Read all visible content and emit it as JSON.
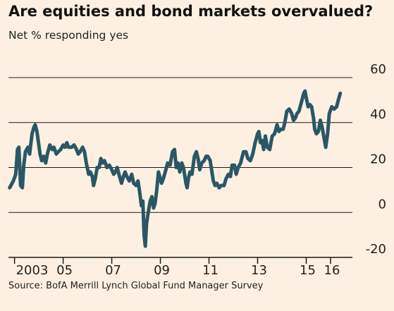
{
  "chart_data": {
    "type": "line",
    "title": "Are equities and bond markets overvalued?",
    "subtitle": "Net % responding yes",
    "source": "Source: BofA Merrill Lynch Global Fund Manager Survey",
    "ylim": [
      -20,
      60
    ],
    "yticks": [
      {
        "value": 60,
        "label": "60"
      },
      {
        "value": 40,
        "label": "40"
      },
      {
        "value": 20,
        "label": "20"
      },
      {
        "value": 0,
        "label": "0"
      },
      {
        "value": -20,
        "label": "-20"
      }
    ],
    "xlim": [
      2002.75,
      2016.9
    ],
    "xticks": [
      {
        "value": 2003.0,
        "label": "2003"
      },
      {
        "value": 2005.0,
        "label": "05"
      },
      {
        "value": 2007.0,
        "label": "07"
      },
      {
        "value": 2009.0,
        "label": "09"
      },
      {
        "value": 2011.0,
        "label": "11"
      },
      {
        "value": 2013.0,
        "label": "13"
      },
      {
        "value": 2015.0,
        "label": "15"
      },
      {
        "value": 2016.0,
        "label": "16"
      }
    ],
    "grid": true,
    "line_color": "#2a5766",
    "series": [
      {
        "values": [
          [
            2002.8,
            11
          ],
          [
            2002.95,
            14
          ],
          [
            2003.05,
            17
          ],
          [
            2003.12,
            28
          ],
          [
            2003.18,
            29
          ],
          [
            2003.25,
            12
          ],
          [
            2003.32,
            11
          ],
          [
            2003.38,
            21
          ],
          [
            2003.45,
            27
          ],
          [
            2003.55,
            29
          ],
          [
            2003.62,
            26
          ],
          [
            2003.72,
            35
          ],
          [
            2003.8,
            38
          ],
          [
            2003.85,
            39
          ],
          [
            2003.92,
            36
          ],
          [
            2004.0,
            30
          ],
          [
            2004.05,
            26
          ],
          [
            2004.12,
            23
          ],
          [
            2004.2,
            25
          ],
          [
            2004.28,
            22
          ],
          [
            2004.35,
            26
          ],
          [
            2004.45,
            30
          ],
          [
            2004.55,
            28
          ],
          [
            2004.62,
            29
          ],
          [
            2004.72,
            26
          ],
          [
            2004.8,
            27
          ],
          [
            2004.9,
            28
          ],
          [
            2005.0,
            30
          ],
          [
            2005.08,
            29
          ],
          [
            2005.15,
            31
          ],
          [
            2005.22,
            29
          ],
          [
            2005.35,
            29
          ],
          [
            2005.45,
            30
          ],
          [
            2005.55,
            28
          ],
          [
            2005.62,
            26
          ],
          [
            2005.7,
            27
          ],
          [
            2005.8,
            29
          ],
          [
            2005.88,
            27
          ],
          [
            2005.95,
            22
          ],
          [
            2006.05,
            17
          ],
          [
            2006.12,
            18
          ],
          [
            2006.2,
            16
          ],
          [
            2006.25,
            12
          ],
          [
            2006.32,
            15
          ],
          [
            2006.4,
            20
          ],
          [
            2006.48,
            20
          ],
          [
            2006.55,
            24
          ],
          [
            2006.62,
            22
          ],
          [
            2006.7,
            23
          ],
          [
            2006.8,
            20
          ],
          [
            2006.9,
            21
          ],
          [
            2007.0,
            19
          ],
          [
            2007.08,
            17
          ],
          [
            2007.15,
            18
          ],
          [
            2007.22,
            20
          ],
          [
            2007.32,
            16
          ],
          [
            2007.4,
            13
          ],
          [
            2007.48,
            16
          ],
          [
            2007.55,
            18
          ],
          [
            2007.62,
            16
          ],
          [
            2007.72,
            14
          ],
          [
            2007.82,
            17
          ],
          [
            2007.9,
            13
          ],
          [
            2008.0,
            12
          ],
          [
            2008.08,
            14
          ],
          [
            2008.15,
            9
          ],
          [
            2008.22,
            3
          ],
          [
            2008.28,
            5
          ],
          [
            2008.33,
            -10
          ],
          [
            2008.38,
            -15
          ],
          [
            2008.43,
            -5
          ],
          [
            2008.5,
            0
          ],
          [
            2008.58,
            5
          ],
          [
            2008.65,
            7
          ],
          [
            2008.72,
            2
          ],
          [
            2008.78,
            4
          ],
          [
            2008.85,
            10
          ],
          [
            2008.92,
            18
          ],
          [
            2009.0,
            15
          ],
          [
            2009.05,
            13
          ],
          [
            2009.12,
            15
          ],
          [
            2009.2,
            18
          ],
          [
            2009.3,
            22
          ],
          [
            2009.4,
            21
          ],
          [
            2009.5,
            27
          ],
          [
            2009.58,
            28
          ],
          [
            2009.65,
            20
          ],
          [
            2009.72,
            22
          ],
          [
            2009.8,
            18
          ],
          [
            2009.88,
            22
          ],
          [
            2009.95,
            20
          ],
          [
            2010.05,
            13
          ],
          [
            2010.1,
            11
          ],
          [
            2010.15,
            15
          ],
          [
            2010.22,
            18
          ],
          [
            2010.3,
            17
          ],
          [
            2010.4,
            25
          ],
          [
            2010.48,
            27
          ],
          [
            2010.55,
            24
          ],
          [
            2010.62,
            19
          ],
          [
            2010.7,
            22
          ],
          [
            2010.8,
            23
          ],
          [
            2010.88,
            25
          ],
          [
            2010.95,
            25
          ],
          [
            2011.05,
            23
          ],
          [
            2011.12,
            18
          ],
          [
            2011.18,
            14
          ],
          [
            2011.25,
            12
          ],
          [
            2011.32,
            13
          ],
          [
            2011.42,
            11
          ],
          [
            2011.5,
            12
          ],
          [
            2011.62,
            12
          ],
          [
            2011.7,
            15
          ],
          [
            2011.8,
            17
          ],
          [
            2011.88,
            16
          ],
          [
            2011.95,
            21
          ],
          [
            2012.05,
            21
          ],
          [
            2012.12,
            17
          ],
          [
            2012.2,
            20
          ],
          [
            2012.3,
            22
          ],
          [
            2012.42,
            27
          ],
          [
            2012.52,
            27
          ],
          [
            2012.6,
            24
          ],
          [
            2012.7,
            23
          ],
          [
            2012.8,
            26
          ],
          [
            2012.9,
            31
          ],
          [
            2013.0,
            35
          ],
          [
            2013.05,
            36
          ],
          [
            2013.12,
            31
          ],
          [
            2013.18,
            32
          ],
          [
            2013.25,
            28
          ],
          [
            2013.32,
            34
          ],
          [
            2013.4,
            29
          ],
          [
            2013.5,
            28
          ],
          [
            2013.6,
            34
          ],
          [
            2013.7,
            35
          ],
          [
            2013.8,
            39
          ],
          [
            2013.88,
            36
          ],
          [
            2013.95,
            37
          ],
          [
            2014.05,
            37
          ],
          [
            2014.12,
            40
          ],
          [
            2014.2,
            45
          ],
          [
            2014.3,
            46
          ],
          [
            2014.4,
            44
          ],
          [
            2014.48,
            41
          ],
          [
            2014.55,
            42
          ],
          [
            2014.62,
            44
          ],
          [
            2014.7,
            45
          ],
          [
            2014.8,
            49
          ],
          [
            2014.9,
            53
          ],
          [
            2014.95,
            54
          ],
          [
            2015.0,
            51
          ],
          [
            2015.08,
            47
          ],
          [
            2015.15,
            48
          ],
          [
            2015.22,
            47
          ],
          [
            2015.3,
            42
          ],
          [
            2015.35,
            37
          ],
          [
            2015.42,
            35
          ],
          [
            2015.5,
            36
          ],
          [
            2015.58,
            41
          ],
          [
            2015.65,
            38
          ],
          [
            2015.72,
            34
          ],
          [
            2015.8,
            29
          ],
          [
            2015.88,
            35
          ],
          [
            2015.95,
            44
          ],
          [
            2016.05,
            47
          ],
          [
            2016.15,
            46
          ],
          [
            2016.25,
            47
          ],
          [
            2016.32,
            50
          ],
          [
            2016.4,
            53
          ]
        ]
      }
    ]
  }
}
